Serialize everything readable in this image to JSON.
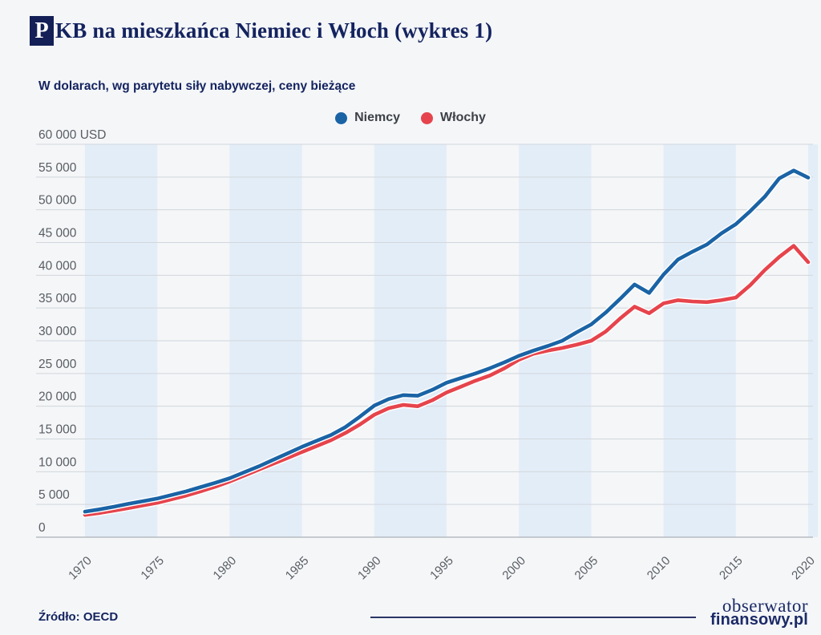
{
  "header": {
    "badge_letter": "P",
    "title_rest": "KB na mieszkańca Niemiec i Włoch (wykres 1)",
    "subtitle": "W dolarach, wg parytetu siły nabywczej, ceny bieżące"
  },
  "legend": [
    {
      "label": "Niemcy",
      "color": "#1a63a5"
    },
    {
      "label": "Włochy",
      "color": "#e6444c"
    }
  ],
  "footer": {
    "source": "Źródło: OECD",
    "logo_line1": "obserwator",
    "logo_line2": "finansowy.pl"
  },
  "colors": {
    "background": "#f4f6f8",
    "stripe": "#e3edf8",
    "gridline": "#d2d7db",
    "axis_line": "#b7bcc1",
    "axis_text": "#595d62",
    "navy_text": "#14235f",
    "line_casing": "#ffffff"
  },
  "chart_data": {
    "type": "line",
    "title": "PKB na mieszkańca Niemiec i Włoch (wykres 1)",
    "subtitle": "W dolarach, wg parytetu siły nabywczej, ceny bieżące",
    "ylabel": "USD",
    "ylim": [
      0,
      60000
    ],
    "ytick_step": 5000,
    "ytick_top_suffix": " USD",
    "grid": true,
    "legend_position": "top-center",
    "stripe_decades": [
      1970,
      1980,
      1990,
      2000,
      2010,
      2020
    ],
    "xticks": [
      1970,
      1975,
      1980,
      1985,
      1990,
      1995,
      2000,
      2005,
      2010,
      2015,
      2020
    ],
    "x": [
      1970,
      1971,
      1972,
      1973,
      1974,
      1975,
      1976,
      1977,
      1978,
      1979,
      1980,
      1981,
      1982,
      1983,
      1984,
      1985,
      1986,
      1987,
      1988,
      1989,
      1990,
      1991,
      1992,
      1993,
      1994,
      1995,
      1996,
      1997,
      1998,
      1999,
      2000,
      2001,
      2002,
      2003,
      2004,
      2005,
      2006,
      2007,
      2008,
      2009,
      2010,
      2011,
      2012,
      2013,
      2014,
      2015,
      2016,
      2017,
      2018,
      2019,
      2020
    ],
    "series": [
      {
        "name": "Niemcy",
        "color": "#1a63a5",
        "values": [
          3900,
          4250,
          4650,
          5100,
          5500,
          5900,
          6450,
          7000,
          7650,
          8300,
          9000,
          9900,
          10800,
          11800,
          12800,
          13800,
          14700,
          15600,
          16800,
          18400,
          20100,
          21100,
          21700,
          21600,
          22500,
          23600,
          24300,
          25000,
          25800,
          26700,
          27700,
          28500,
          29200,
          30000,
          31300,
          32500,
          34300,
          36400,
          38600,
          37300,
          40100,
          42400,
          43600,
          44700,
          46400,
          47800,
          49800,
          52000,
          54800,
          56000,
          54900
        ]
      },
      {
        "name": "Włochy",
        "color": "#e6444c",
        "values": [
          3400,
          3700,
          4050,
          4450,
          4850,
          5250,
          5800,
          6350,
          7000,
          7700,
          8500,
          9400,
          10300,
          11200,
          12100,
          13000,
          13900,
          14800,
          15900,
          17200,
          18700,
          19700,
          20200,
          20000,
          20900,
          22100,
          23000,
          23900,
          24700,
          25800,
          27100,
          28000,
          28500,
          28900,
          29400,
          30000,
          31400,
          33400,
          35200,
          34200,
          35700,
          36200,
          36000,
          35900,
          36200,
          36600,
          38500,
          40800,
          42800,
          44500,
          42000
        ]
      }
    ]
  }
}
